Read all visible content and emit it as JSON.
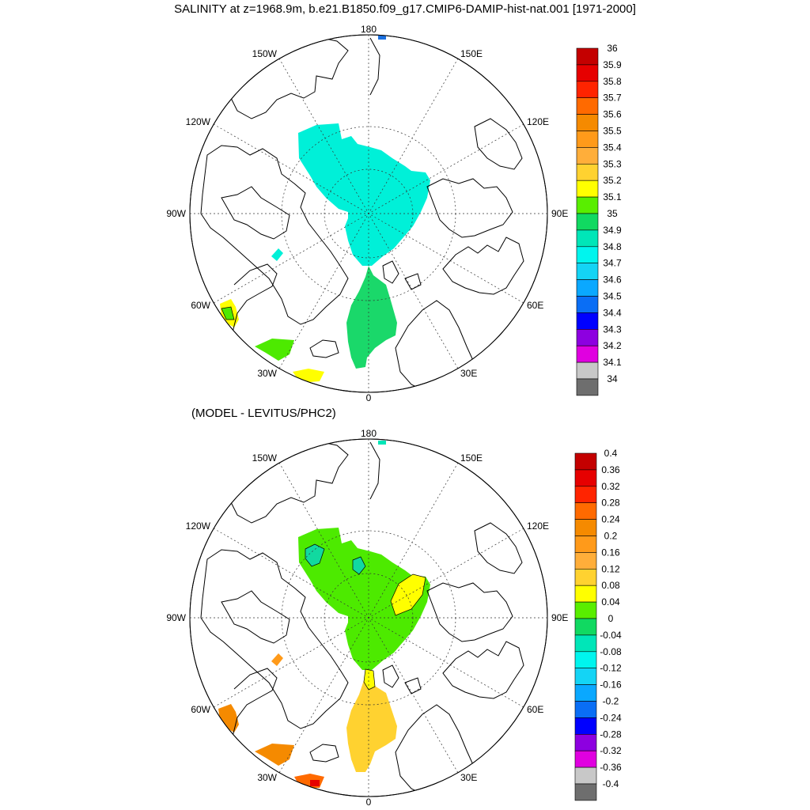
{
  "title": "SALINITY at z=1968.9m, b.e21.B1850.f09_g17.CMIP6-DAMIP-hist-nat.001 [1971-2000]",
  "subtitle": "(MODEL - LEVITUS/PHC2)",
  "longitude_labels": {
    "top": "180",
    "bottom": "0",
    "left": "90W",
    "right": "90E",
    "upper_left": "150W",
    "upper_right": "150E",
    "mid_upper_left": "120W",
    "mid_upper_right": "120E",
    "mid_lower_left": "60W",
    "mid_lower_right": "60E",
    "lower_left": "30W",
    "lower_right": "30E"
  },
  "panels": [
    {
      "name": "salinity",
      "colorbar": {
        "labels": [
          "36",
          "35.9",
          "35.8",
          "35.7",
          "35.6",
          "35.5",
          "35.4",
          "35.3",
          "35.2",
          "35.1",
          "35",
          "34.9",
          "34.8",
          "34.7",
          "34.6",
          "34.5",
          "34.4",
          "34.3",
          "34.2",
          "34.1",
          "34"
        ],
        "colors": [
          "#c40000",
          "#e60000",
          "#ff2400",
          "#ff6a00",
          "#f58a00",
          "#ff9a1a",
          "#ffae3a",
          "#ffd230",
          "#ffff00",
          "#59ee00",
          "#11d961",
          "#00e6b8",
          "#00f5ee",
          "#14d4f5",
          "#0aa8ff",
          "#0a6ef5",
          "#0000ff",
          "#8d00e0",
          "#e000e0",
          "#c8c8c8"
        ],
        "bottom_color": "#6e6e6e"
      }
    },
    {
      "name": "difference",
      "colorbar": {
        "labels": [
          "0.4",
          "0.36",
          "0.32",
          "0.28",
          "0.24",
          "0.2",
          "0.16",
          "0.12",
          "0.08",
          "0.04",
          "0",
          "-0.04",
          "-0.08",
          "-0.12",
          "-0.16",
          "-0.2",
          "-0.24",
          "-0.28",
          "-0.32",
          "-0.36",
          "-0.4"
        ],
        "colors": [
          "#c40000",
          "#e60000",
          "#ff2400",
          "#ff6a00",
          "#f58a00",
          "#ff9a1a",
          "#ffae3a",
          "#ffd230",
          "#ffff00",
          "#59ee00",
          "#11d961",
          "#00e6b8",
          "#00f5ee",
          "#14d4f5",
          "#0aa8ff",
          "#0a6ef5",
          "#0000ff",
          "#8d00e0",
          "#e000e0",
          "#c8c8c8"
        ],
        "bottom_color": "#6e6e6e"
      }
    }
  ]
}
